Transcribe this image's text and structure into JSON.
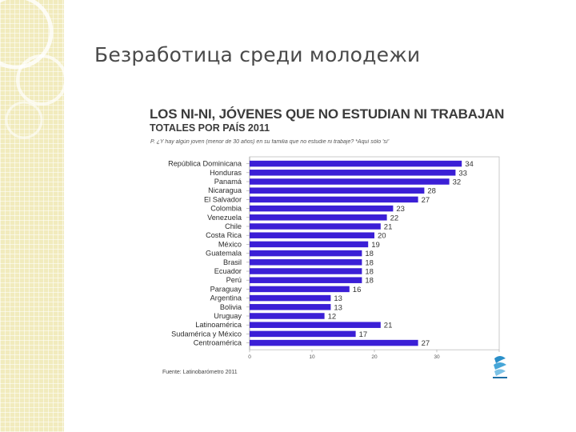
{
  "slide": {
    "title": "Безработица среди молодежи"
  },
  "chart_data": {
    "type": "bar",
    "orientation": "horizontal",
    "title": "LOS NI-NI, JÓVENES QUE NO ESTUDIAN NI TRABAJAN",
    "subtitle": "TOTALES POR PAÍS 2011",
    "question": "P. ¿Y hay algún joven (menor de 30 años) en su familia que no estudie ni trabaje? *Aquí sólo 'sí'",
    "source": "Fuente: Latinobarómetro 2011",
    "categories": [
      "República Dominicana",
      "Honduras",
      "Panamá",
      "Nicaragua",
      "El Salvador",
      "Colombia",
      "Venezuela",
      "Chile",
      "Costa Rica",
      "México",
      "Guatemala",
      "Brasil",
      "Ecuador",
      "Perú",
      "Paraguay",
      "Argentina",
      "Bolivia",
      "Uruguay",
      "Latinoamérica",
      "Sudamérica y México",
      "Centroamérica"
    ],
    "values": [
      34,
      33,
      32,
      28,
      27,
      23,
      22,
      21,
      20,
      19,
      18,
      18,
      18,
      18,
      16,
      13,
      13,
      12,
      21,
      17,
      27
    ],
    "xlim": [
      0,
      40
    ],
    "xticks": [
      "0",
      "10",
      "20",
      "30",
      "40"
    ],
    "bar_color": "#3b1fd6",
    "grid": false
  }
}
